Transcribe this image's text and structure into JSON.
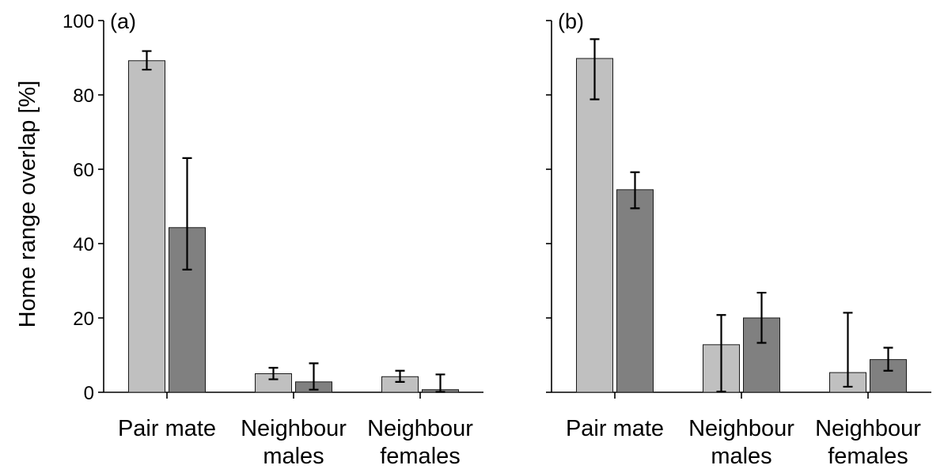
{
  "figure": {
    "ylabel": "Home range overlap [%]"
  },
  "colors": {
    "series1": "#c0c0c0",
    "series2": "#808080"
  },
  "chart_data": [
    {
      "type": "bar",
      "panel_label": "(a)",
      "categories": [
        [
          "Pair mate"
        ],
        [
          "Neighbour",
          "males"
        ],
        [
          "Neighbour",
          "females"
        ]
      ],
      "ylabel": "Home range overlap [%]",
      "ylim": [
        0,
        100
      ],
      "yticks": [
        0,
        20,
        40,
        60,
        80,
        100
      ],
      "show_tick_labels": true,
      "grid": false,
      "series": [
        {
          "values": [
            89.2,
            5.0,
            4.2
          ],
          "err_low": [
            86.8,
            3.5,
            2.8
          ],
          "err_high": [
            91.8,
            6.6,
            5.8
          ]
        },
        {
          "values": [
            44.3,
            2.8,
            0.7
          ],
          "err_low": [
            33.0,
            0.7,
            0.1
          ],
          "err_high": [
            63.0,
            7.8,
            4.8
          ]
        }
      ]
    },
    {
      "type": "bar",
      "panel_label": "(b)",
      "categories": [
        [
          "Pair mate"
        ],
        [
          "Neighbour",
          "males"
        ],
        [
          "Neighbour",
          "females"
        ]
      ],
      "ylim": [
        0,
        100
      ],
      "yticks": [
        0,
        20,
        40,
        60,
        80,
        100
      ],
      "show_tick_labels": false,
      "grid": false,
      "series": [
        {
          "values": [
            89.8,
            12.8,
            5.3
          ],
          "err_low": [
            78.8,
            0.2,
            1.5
          ],
          "err_high": [
            95.0,
            20.8,
            21.4
          ]
        },
        {
          "values": [
            54.5,
            20.0,
            8.8
          ],
          "err_low": [
            49.5,
            13.3,
            5.8
          ],
          "err_high": [
            59.2,
            26.8,
            12.0
          ]
        }
      ]
    }
  ]
}
